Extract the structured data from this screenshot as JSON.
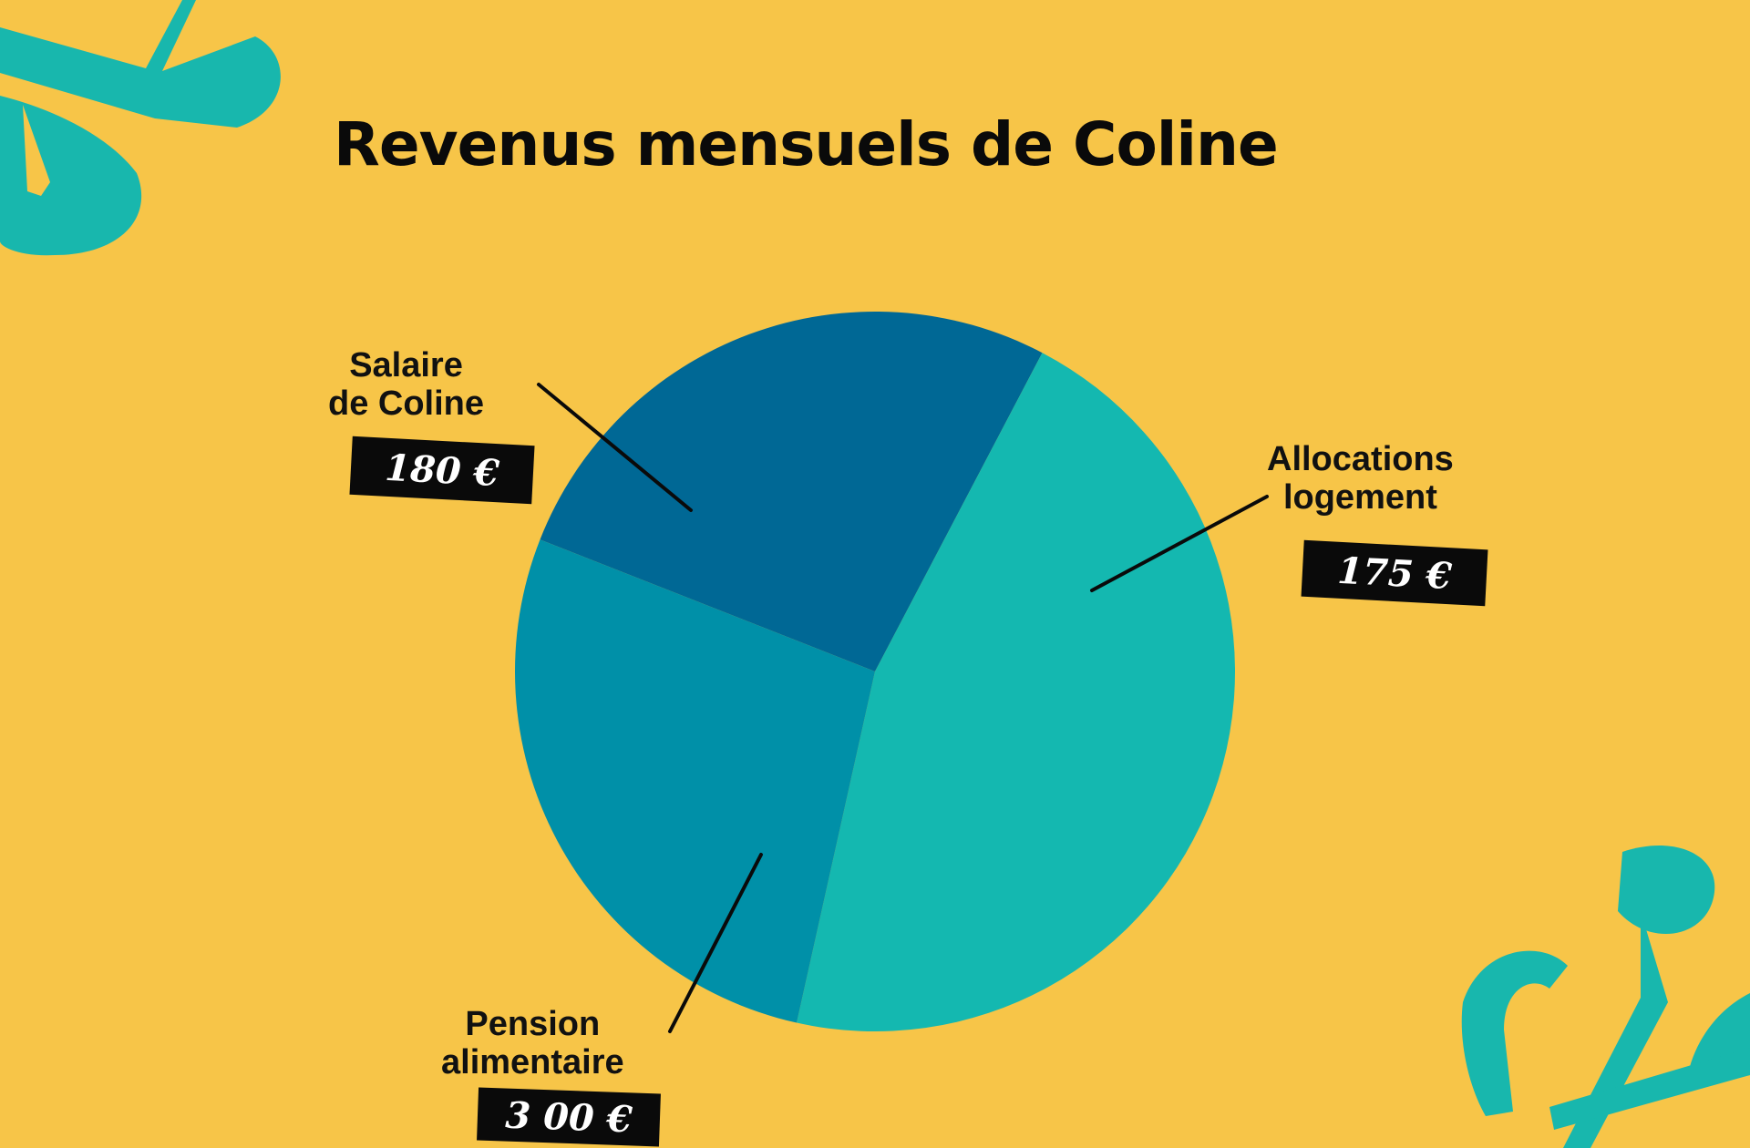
{
  "colors": {
    "background": "#f7c548",
    "decor": "#18b7ad",
    "slice_salaire": "#0090a8",
    "slice_allocations": "#006895",
    "slice_pension": "#14b8b0",
    "leader": "#0a0a0a"
  },
  "chart_data": {
    "type": "pie",
    "title": "Revenus mensuels de Coline",
    "unit": "€",
    "slices": [
      {
        "key": "allocations",
        "label_lines": [
          "Allocations",
          "logement"
        ],
        "value": 175,
        "value_label": "175 €"
      },
      {
        "key": "pension",
        "label_lines": [
          "Pension",
          "alimentaire"
        ],
        "value": 300,
        "value_label": "3 00 €"
      },
      {
        "key": "salaire",
        "label_lines": [
          "Salaire",
          "de Coline"
        ],
        "value": 180,
        "value_label": "180 €"
      }
    ],
    "legend": "none"
  },
  "decorations": [
    "squiggle-top-left",
    "squiggle-bottom-right"
  ]
}
